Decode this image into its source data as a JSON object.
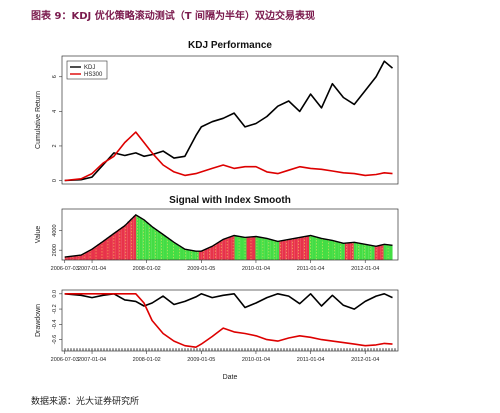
{
  "caption": "图表 9：KDJ 优化策略滚动测试（T 间隔为半年）双边交易表现",
  "source": "数据来源：光大证券研究所",
  "chart_data": [
    {
      "type": "line",
      "title": "KDJ Performance",
      "ylabel": "Cumulative Return",
      "yticks": [
        0,
        2,
        4,
        6
      ],
      "ylim": [
        -0.2,
        7.2
      ],
      "xlim": [
        2006.45,
        2012.6
      ],
      "legend": "top-left",
      "series": [
        {
          "name": "KDJ",
          "color": "#000000",
          "x": [
            2006.5,
            2006.8,
            2007.0,
            2007.2,
            2007.4,
            2007.6,
            2007.8,
            2007.95,
            2008.1,
            2008.3,
            2008.5,
            2008.7,
            2008.9,
            2009.0,
            2009.2,
            2009.4,
            2009.6,
            2009.8,
            2010.0,
            2010.2,
            2010.4,
            2010.6,
            2010.8,
            2011.0,
            2011.2,
            2011.4,
            2011.6,
            2011.8,
            2012.0,
            2012.2,
            2012.35,
            2012.5
          ],
          "y": [
            0.0,
            0.05,
            0.2,
            0.9,
            1.6,
            1.45,
            1.6,
            1.4,
            1.5,
            1.7,
            1.3,
            1.4,
            2.6,
            3.1,
            3.4,
            3.6,
            3.9,
            3.1,
            3.3,
            3.7,
            4.3,
            4.6,
            4.0,
            5.0,
            4.2,
            5.6,
            4.8,
            4.4,
            5.2,
            6.0,
            6.9,
            6.5
          ]
        },
        {
          "name": "HS300",
          "color": "#dd0000",
          "x": [
            2006.5,
            2006.8,
            2007.0,
            2007.2,
            2007.4,
            2007.6,
            2007.8,
            2007.95,
            2008.1,
            2008.3,
            2008.5,
            2008.7,
            2008.9,
            2009.0,
            2009.2,
            2009.4,
            2009.6,
            2009.8,
            2010.0,
            2010.2,
            2010.4,
            2010.6,
            2010.8,
            2011.0,
            2011.2,
            2011.4,
            2011.6,
            2011.8,
            2012.0,
            2012.2,
            2012.35,
            2012.5
          ],
          "y": [
            0.0,
            0.1,
            0.4,
            1.0,
            1.4,
            2.2,
            2.8,
            2.2,
            1.6,
            0.9,
            0.5,
            0.3,
            0.4,
            0.5,
            0.7,
            0.9,
            0.7,
            0.8,
            0.8,
            0.5,
            0.4,
            0.6,
            0.8,
            0.7,
            0.65,
            0.55,
            0.45,
            0.4,
            0.3,
            0.35,
            0.45,
            0.4
          ]
        }
      ]
    },
    {
      "type": "area",
      "title": "Signal with Index Smooth",
      "ylabel": "Value",
      "yticks": [
        2000,
        4000
      ],
      "ylim": [
        1000,
        6200
      ],
      "xticks": [
        "2006-07-03",
        "2007-01-04",
        "2008-01-02",
        "2009-01-05",
        "2010-01-04",
        "2011-01-04",
        "2012-01-04"
      ],
      "xtick_positions": [
        2006.5,
        2007.0,
        2008.0,
        2009.0,
        2010.0,
        2011.0,
        2012.0
      ],
      "signal_colors": {
        "long": "#e8334a",
        "short": "#44dd44"
      },
      "x": [
        2006.5,
        2006.8,
        2007.0,
        2007.2,
        2007.4,
        2007.6,
        2007.8,
        2007.95,
        2008.1,
        2008.3,
        2008.5,
        2008.7,
        2008.9,
        2009.0,
        2009.2,
        2009.4,
        2009.6,
        2009.8,
        2010.0,
        2010.2,
        2010.4,
        2010.6,
        2010.8,
        2011.0,
        2011.2,
        2011.4,
        2011.6,
        2011.8,
        2012.0,
        2012.2,
        2012.35,
        2012.5
      ],
      "values": [
        1300,
        1500,
        2100,
        2900,
        3700,
        4500,
        5600,
        5100,
        4400,
        3600,
        2800,
        2100,
        1900,
        1900,
        2400,
        3100,
        3500,
        3300,
        3400,
        3200,
        2900,
        3100,
        3300,
        3500,
        3200,
        3000,
        2700,
        2800,
        2600,
        2400,
        2600,
        2500
      ]
    },
    {
      "type": "line",
      "ylabel": "Drawdown",
      "xlabel": "Date",
      "yticks": [
        0.0,
        -0.2,
        -0.4,
        -0.6
      ],
      "ylim": [
        -0.75,
        0.05
      ],
      "xticks": [
        "2006-07-03",
        "2007-01-04",
        "2008-01-02",
        "2009-01-05",
        "2010-01-04",
        "2011-01-04",
        "2012-01-04"
      ],
      "xtick_positions": [
        2006.5,
        2007.0,
        2008.0,
        2009.0,
        2010.0,
        2011.0,
        2012.0
      ],
      "series": [
        {
          "name": "KDJ",
          "color": "#000000",
          "x": [
            2006.5,
            2006.8,
            2007.0,
            2007.2,
            2007.4,
            2007.6,
            2007.8,
            2007.95,
            2008.1,
            2008.3,
            2008.5,
            2008.7,
            2008.9,
            2009.0,
            2009.2,
            2009.4,
            2009.6,
            2009.8,
            2010.0,
            2010.2,
            2010.4,
            2010.6,
            2010.8,
            2011.0,
            2011.2,
            2011.4,
            2011.6,
            2011.8,
            2012.0,
            2012.2,
            2012.35,
            2012.5
          ],
          "y": [
            0.0,
            -0.02,
            -0.05,
            -0.02,
            0.0,
            -0.08,
            -0.1,
            -0.16,
            -0.12,
            -0.03,
            -0.14,
            -0.1,
            -0.04,
            0.0,
            -0.05,
            -0.02,
            0.0,
            -0.18,
            -0.12,
            -0.05,
            0.0,
            -0.03,
            -0.13,
            0.0,
            -0.16,
            -0.02,
            -0.15,
            -0.2,
            -0.1,
            -0.03,
            0.0,
            -0.05
          ]
        },
        {
          "name": "HS300",
          "color": "#dd0000",
          "x": [
            2006.5,
            2006.8,
            2007.0,
            2007.2,
            2007.4,
            2007.6,
            2007.8,
            2007.95,
            2008.1,
            2008.3,
            2008.5,
            2008.7,
            2008.9,
            2009.0,
            2009.2,
            2009.4,
            2009.6,
            2009.8,
            2010.0,
            2010.2,
            2010.4,
            2010.6,
            2010.8,
            2011.0,
            2011.2,
            2011.4,
            2011.6,
            2011.8,
            2012.0,
            2012.2,
            2012.35,
            2012.5
          ],
          "y": [
            0.0,
            0.0,
            0.0,
            0.0,
            0.0,
            0.0,
            0.0,
            -0.12,
            -0.35,
            -0.52,
            -0.62,
            -0.68,
            -0.7,
            -0.66,
            -0.56,
            -0.45,
            -0.5,
            -0.52,
            -0.55,
            -0.6,
            -0.62,
            -0.58,
            -0.55,
            -0.57,
            -0.6,
            -0.62,
            -0.64,
            -0.66,
            -0.68,
            -0.67,
            -0.65,
            -0.66
          ]
        }
      ]
    }
  ]
}
